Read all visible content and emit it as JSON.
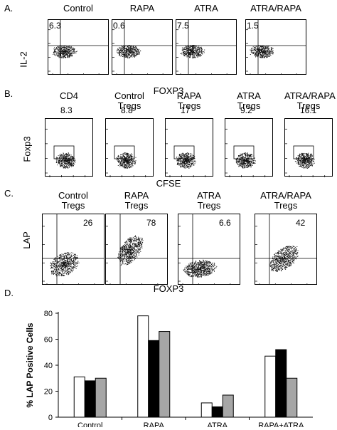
{
  "panels": {
    "A": {
      "letter": "A.",
      "ylabel": "IL-2",
      "xlabel": "FOXP3",
      "plots": [
        {
          "title": "Control",
          "value": "6.3"
        },
        {
          "title": "RAPA",
          "value": "0.6"
        },
        {
          "title": "ATRA",
          "value": "7.5"
        },
        {
          "title": "ATRA/RAPA",
          "value": "1.5"
        }
      ]
    },
    "B": {
      "letter": "B.",
      "ylabel": "Foxp3",
      "xlabel": "CFSE",
      "plots": [
        {
          "title": "CD4",
          "value": "8.3"
        },
        {
          "title": "Control\nTregs",
          "value": "8.8"
        },
        {
          "title": "RAPA\nTregs",
          "value": "17"
        },
        {
          "title": "ATRA\nTregs",
          "value": "9.2"
        },
        {
          "title": "ATRA/RAPA\nTregs",
          "value": "16.1"
        }
      ]
    },
    "C": {
      "letter": "C.",
      "ylabel": "LAP",
      "xlabel": "FOXP3",
      "plots": [
        {
          "title": "Control\nTregs",
          "value": "26"
        },
        {
          "title": "RAPA\nTregs",
          "value": "78"
        },
        {
          "title": "ATRA\nTregs",
          "value": "6.6"
        },
        {
          "title": "ATRA/RAPA\nTregs",
          "value": "42"
        }
      ]
    },
    "D": {
      "letter": "D."
    }
  },
  "chart_data": {
    "type": "bar",
    "categories": [
      "Control",
      "RAPA",
      "ATRA",
      "RAPA+ATRA"
    ],
    "series": [
      {
        "values": [
          31,
          78,
          11,
          47
        ],
        "color": "#ffffff"
      },
      {
        "values": [
          28,
          59,
          8,
          52
        ],
        "color": "#000000"
      },
      {
        "values": [
          30,
          66,
          17,
          30
        ],
        "color": "#a6a6a6"
      }
    ],
    "ylabel": "% LAP Positive Cells",
    "ylim": [
      0,
      80
    ],
    "yticks": [
      0,
      20,
      40,
      60,
      80
    ],
    "grid": false
  }
}
